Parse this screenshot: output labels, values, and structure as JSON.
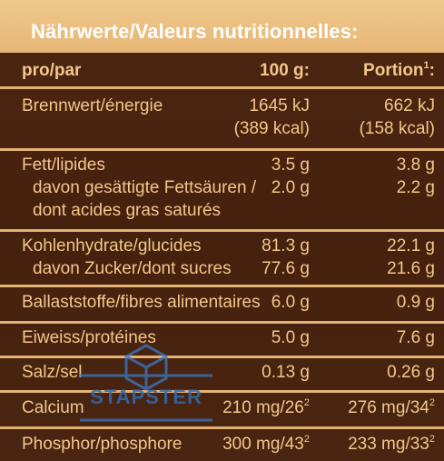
{
  "title": "Nährwerte/Valeurs nutritionnelles:",
  "header": {
    "label": "pro/par",
    "col1": "100 g:",
    "col2": "Portion",
    "col2_sup": "1",
    "col2_suffix": ":"
  },
  "rows": {
    "energy": {
      "label": "Brennwert/énergie",
      "c1a": "1645 kJ",
      "c1b": "(389 kcal)",
      "c2a": "662 kJ",
      "c2b": "(158 kcal)"
    },
    "fat": {
      "label": "Fett/lipides",
      "c1": "3.5 g",
      "c2": "3.8 g"
    },
    "satfat": {
      "label_a": "davon gesättigte Fettsäuren /",
      "label_b": "dont acides gras saturés",
      "c1": "2.0 g",
      "c2": "2.2 g"
    },
    "carbs": {
      "label": "Kohlenhydrate/glucides",
      "c1": "81.3 g",
      "c2": "22.1 g"
    },
    "sugar": {
      "label": "davon Zucker/dont sucres",
      "c1": "77.6 g",
      "c2": "21.6 g"
    },
    "fibre": {
      "label": "Ballaststoffe/fibres alimentaires",
      "c1": "6.0 g",
      "c2": "0.9 g"
    },
    "protein": {
      "label": "Eiweiss/protéines",
      "c1": "5.0 g",
      "c2": "7.6 g"
    },
    "salt": {
      "label": "Salz/sel",
      "c1": "0.13 g",
      "c2": "0.26 g"
    },
    "calcium": {
      "label": "Calcium",
      "c1": "210 mg/26",
      "c1_sup": "2",
      "c2": "276 mg/34",
      "c2_sup": "2"
    },
    "phosphor": {
      "label": "Phosphor/phosphore",
      "c1": "300 mg/43",
      "c1_sup": "2",
      "c2": "233 mg/33",
      "c2_sup": "2"
    }
  },
  "watermark": {
    "text": "STAPSTER"
  },
  "colors": {
    "background": "#4a2410",
    "text": "#f3c78a",
    "title_bar": "#e6b676",
    "title_text": "#ffffff",
    "separator": "#e4b274",
    "watermark": "#2f6bb3"
  }
}
